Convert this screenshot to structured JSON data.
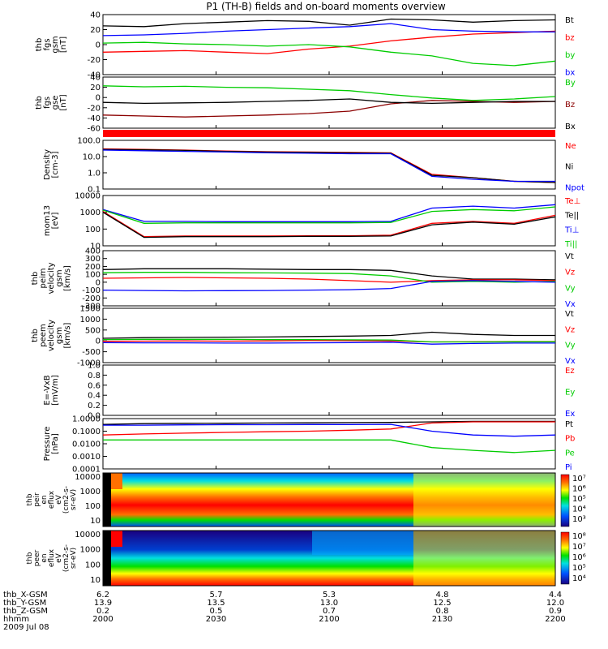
{
  "chart_data": {
    "type": "line",
    "title": "P1 (TH-B) fields and on-board moments overview",
    "date": "2009 Jul 08",
    "time_ticks": [
      "2000",
      "2030",
      "2100",
      "2130",
      "2200"
    ],
    "ephemeris": [
      {
        "label": "thb_X-GSM",
        "values": [
          "6.2",
          "5.7",
          "5.3",
          "4.8",
          "4.4"
        ]
      },
      {
        "label": "thb_Y-GSM",
        "values": [
          "13.9",
          "13.5",
          "13.0",
          "12.5",
          "12.0"
        ]
      },
      {
        "label": "thb_Z-GSM",
        "values": [
          "0.2",
          "0.5",
          "0.7",
          "0.8",
          "0.9"
        ]
      },
      {
        "label": "hhmm",
        "values": [
          "2000",
          "2030",
          "2100",
          "2130",
          "2200"
        ]
      }
    ],
    "panels": [
      {
        "ylabel": [
          "thb",
          "fgs",
          "gsm",
          "[nT]"
        ],
        "ticks": [
          "40",
          "20",
          "0",
          "-20",
          "-40"
        ],
        "ylim": [
          -40,
          40
        ],
        "series": [
          {
            "name": "Bt",
            "color": "#000000",
            "values": [
              25,
              24,
              28,
              30,
              32,
              31,
              26,
              34,
              33,
              30,
              32,
              33
            ]
          },
          {
            "name": "bz",
            "color": "#ff0000",
            "values": [
              -10,
              -9,
              -8,
              -10,
              -12,
              -6,
              -2,
              5,
              10,
              14,
              16,
              18
            ]
          },
          {
            "name": "by",
            "color": "#00cc00",
            "values": [
              2,
              3,
              1,
              0,
              -2,
              0,
              -3,
              -10,
              -15,
              -25,
              -28,
              -22
            ]
          },
          {
            "name": "bx",
            "color": "#0000ff",
            "values": [
              12,
              13,
              15,
              18,
              20,
              22,
              24,
              28,
              20,
              18,
              17,
              17
            ]
          }
        ]
      },
      {
        "ylabel": [
          "thb",
          "fgs",
          "gse",
          "[nT]"
        ],
        "ticks": [
          "40",
          "20",
          "0",
          "-20",
          "-40",
          "-60"
        ],
        "ylim": [
          -65,
          40
        ],
        "series": [
          {
            "name": "By",
            "color": "#00cc00",
            "values": [
              22,
              20,
              21,
              19,
              18,
              15,
              12,
              4,
              -3,
              -8,
              -5,
              0
            ]
          },
          {
            "name": "Bz",
            "color": "#8b0000",
            "values": [
              -38,
              -40,
              -42,
              -40,
              -38,
              -35,
              -30,
              -15,
              -8,
              -10,
              -12,
              -10
            ]
          },
          {
            "name": "Bx",
            "color": "#000000",
            "values": [
              -12,
              -14,
              -13,
              -12,
              -10,
              -8,
              -5,
              -12,
              -14,
              -12,
              -10,
              -10
            ]
          }
        ]
      },
      {
        "ylabel": [
          "Density",
          "[cm-3]"
        ],
        "ticks": [
          "100.0",
          "10.0",
          "1.0",
          "0.1"
        ],
        "log": true,
        "ylim": [
          0.1,
          100
        ],
        "series": [
          {
            "name": "Ne",
            "color": "#ff0000",
            "values": [
              30,
              28,
              25,
              22,
              20,
              19,
              18,
              17,
              0.8,
              0.5,
              0.3,
              0.25
            ]
          },
          {
            "name": "Ni",
            "color": "#000000",
            "values": [
              28,
              26,
              24,
              21,
              19,
              18,
              17,
              16,
              0.7,
              0.5,
              0.3,
              0.25
            ]
          },
          {
            "name": "Npot",
            "color": "#0000ff",
            "values": [
              25,
              23,
              21,
              19,
              17,
              16,
              15,
              15,
              0.6,
              0.4,
              0.3,
              0.3
            ]
          }
        ]
      },
      {
        "ylabel": [
          "mom13",
          "[eV]"
        ],
        "ticks": [
          "10000",
          "1000",
          "100",
          "10"
        ],
        "log": true,
        "ylim": [
          5,
          10000
        ],
        "series": [
          {
            "name": "Te⊥",
            "color": "#ff0000",
            "values": [
              900,
              20,
              22,
              22,
              22,
              23,
              23,
              25,
              150,
              200,
              150,
              500
            ]
          },
          {
            "name": "Te||",
            "color": "#000000",
            "values": [
              800,
              18,
              20,
              20,
              20,
              21,
              21,
              22,
              120,
              180,
              130,
              400
            ]
          },
          {
            "name": "Ti⊥",
            "color": "#0000ff",
            "values": [
              1200,
              200,
              200,
              190,
              190,
              190,
              190,
              200,
              1500,
              2000,
              1500,
              2500
            ]
          },
          {
            "name": "Ti||",
            "color": "#00cc00",
            "values": [
              1100,
              150,
              160,
              160,
              160,
              160,
              160,
              170,
              900,
              1200,
              1000,
              1800
            ]
          }
        ]
      },
      {
        "ylabel": [
          "thb",
          "peim",
          "velocity",
          "gsm",
          "[km/s]"
        ],
        "ticks": [
          "400",
          "300",
          "200",
          "100",
          "0",
          "-100",
          "-200",
          "-300"
        ],
        "ylim": [
          -300,
          400
        ],
        "series": [
          {
            "name": "Vt",
            "color": "#000000",
            "values": [
              160,
              170,
              170,
              170,
              165,
              160,
              160,
              150,
              80,
              40,
              40,
              30
            ]
          },
          {
            "name": "Vz",
            "color": "#ff0000",
            "values": [
              50,
              55,
              60,
              55,
              50,
              40,
              20,
              0,
              20,
              30,
              30,
              20
            ]
          },
          {
            "name": "Vy",
            "color": "#00cc00",
            "values": [
              120,
              125,
              125,
              120,
              118,
              115,
              110,
              80,
              0,
              10,
              0,
              10
            ]
          },
          {
            "name": "Vx",
            "color": "#0000ff",
            "values": [
              -100,
              -105,
              -110,
              -108,
              -105,
              -100,
              -95,
              -80,
              10,
              20,
              10,
              0
            ]
          }
        ]
      },
      {
        "ylabel": [
          "thb",
          "peem",
          "velocity",
          "gsm",
          "[km/s]"
        ],
        "ticks": [
          "1500",
          "1000",
          "500",
          "0",
          "-500",
          "-1000"
        ],
        "ylim": [
          -1000,
          1500
        ],
        "series": [
          {
            "name": "Vt",
            "color": "#000000",
            "values": [
              120,
              150,
              160,
              170,
              180,
              200,
              220,
              250,
              400,
              300,
              250,
              250
            ]
          },
          {
            "name": "Vz",
            "color": "#ff0000",
            "values": [
              -20,
              -10,
              0,
              -10,
              0,
              20,
              10,
              0,
              -50,
              -40,
              -30,
              -30
            ]
          },
          {
            "name": "Vy",
            "color": "#00cc00",
            "values": [
              60,
              70,
              70,
              70,
              60,
              60,
              50,
              40,
              -50,
              -50,
              -40,
              -40
            ]
          },
          {
            "name": "Vx",
            "color": "#0000ff",
            "values": [
              -80,
              -90,
              -90,
              -100,
              -100,
              -90,
              -80,
              -60,
              -150,
              -120,
              -100,
              -100
            ]
          }
        ]
      },
      {
        "ylabel": [
          "E=-VxB",
          "[mV/m]"
        ],
        "ticks": [
          "1.0",
          "0.8",
          "0.6",
          "0.4",
          "0.2",
          "0.0"
        ],
        "ylim": [
          0,
          1
        ],
        "series": [
          {
            "name": "Ez",
            "color": "#ff0000",
            "values": []
          },
          {
            "name": "Ey",
            "color": "#00cc00",
            "values": []
          },
          {
            "name": "Ex",
            "color": "#0000ff",
            "values": []
          }
        ]
      },
      {
        "ylabel": [
          "Pressure",
          "[nPa]"
        ],
        "ticks": [
          "1.0000",
          "0.1000",
          "0.0100",
          "0.0010",
          "0.0001"
        ],
        "log": true,
        "ylim": [
          0.0001,
          1
        ],
        "series": [
          {
            "name": "Pt",
            "color": "#000000",
            "values": [
              0.35,
              0.4,
              0.42,
              0.43,
              0.45,
              0.46,
              0.48,
              0.5,
              0.55,
              0.6,
              0.6,
              0.6
            ]
          },
          {
            "name": "Pb",
            "color": "#ff0000",
            "values": [
              0.05,
              0.06,
              0.07,
              0.08,
              0.09,
              0.1,
              0.12,
              0.15,
              0.45,
              0.55,
              0.55,
              0.55
            ]
          },
          {
            "name": "Pe",
            "color": "#00cc00",
            "values": [
              0.02,
              0.02,
              0.02,
              0.02,
              0.02,
              0.02,
              0.02,
              0.02,
              0.005,
              0.003,
              0.002,
              0.003
            ]
          },
          {
            "name": "Pi",
            "color": "#0000ff",
            "values": [
              0.3,
              0.3,
              0.32,
              0.33,
              0.33,
              0.34,
              0.34,
              0.35,
              0.1,
              0.05,
              0.04,
              0.05
            ]
          }
        ]
      }
    ],
    "spectrograms": [
      {
        "ylabel": [
          "thb",
          "peir",
          "en",
          "eflux",
          "eV",
          "(cm2-s-",
          "sr-eV)"
        ],
        "ticks": [
          "10000",
          "1000",
          "100",
          "10"
        ],
        "cbar_ticks": [
          "10⁷",
          "10⁶",
          "10⁵",
          "10⁴",
          "10³"
        ]
      },
      {
        "ylabel": [
          "thb",
          "peer",
          "en",
          "eflux",
          "eV",
          "(cm2-s-",
          "sr-eV)"
        ],
        "ticks": [
          "10000",
          "1000",
          "100",
          "10"
        ],
        "cbar_ticks": [
          "10⁸",
          "10⁷",
          "10⁶",
          "10⁵",
          "10⁴"
        ]
      }
    ]
  }
}
